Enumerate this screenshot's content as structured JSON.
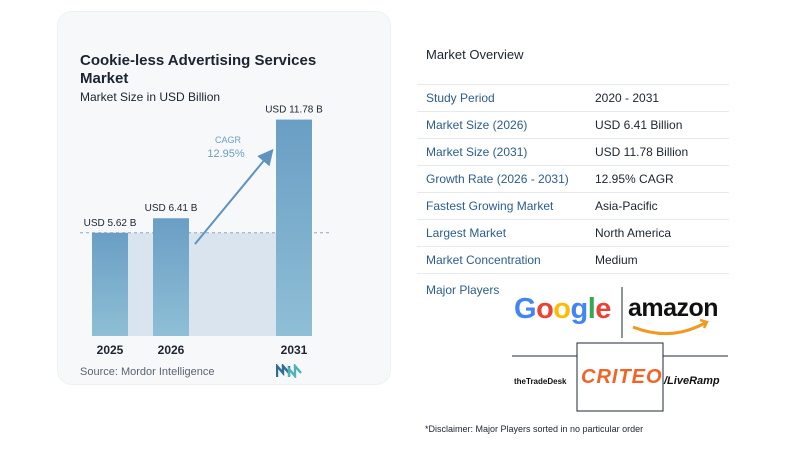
{
  "chart_data": {
    "type": "bar",
    "title": "Cookie-less Advertising Services Market",
    "subtitle": "Market Size in USD Billion",
    "categories": [
      "2025",
      "2026",
      "2031"
    ],
    "values": [
      5.62,
      6.41,
      11.78
    ],
    "data_labels": [
      "USD 5.62 B",
      "USD 6.41 B",
      "USD 11.78 B"
    ],
    "ylim": [
      0,
      13.5
    ],
    "grid": false,
    "cagr_label": "CAGR",
    "cagr_value": "12.95%",
    "colors": {
      "bar": "#6a9ec4",
      "bar_bottom": "#89b8d4",
      "shade": "#d9e4ee",
      "arrow": "#5f94c0",
      "cagr": "#6a9ec4"
    }
  },
  "source": "Source:  Mordor Intelligence",
  "overview": {
    "title": "Market Overview",
    "rows": [
      {
        "label": "Study Period",
        "value": "2020 - 2031"
      },
      {
        "label": "Market Size (2026)",
        "value": "USD 6.41 Billion"
      },
      {
        "label": "Market Size (2031)",
        "value": "USD 11.78 Billion"
      },
      {
        "label": "Growth Rate (2026 - 2031)",
        "value": "12.95% CAGR"
      },
      {
        "label": "Fastest Growing Market",
        "value": "Asia-Pacific"
      },
      {
        "label": "Largest Market",
        "value": "North America"
      },
      {
        "label": "Market Concentration",
        "value": "Medium"
      }
    ],
    "players_label": "Major Players",
    "players": [
      "Google",
      "amazon",
      "theTradeDesk",
      "CRITEO",
      "/LiveRamp"
    ]
  },
  "disclaimer": "*Disclaimer: Major Players sorted in no particular order"
}
